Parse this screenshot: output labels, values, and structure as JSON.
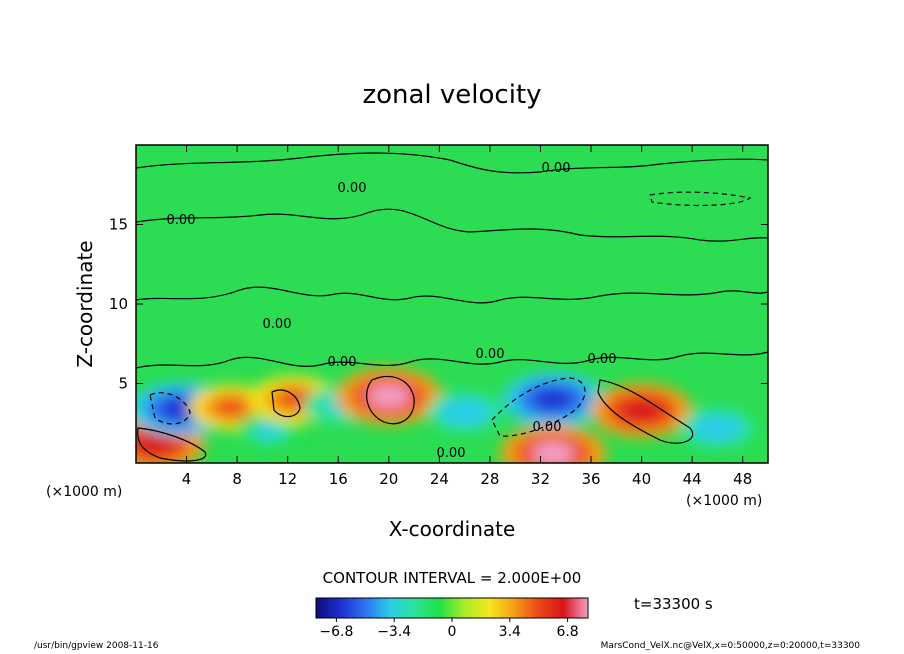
{
  "chart_data": {
    "type": "heatmap",
    "title": "zonal velocity",
    "xlabel": "X-coordinate",
    "ylabel": "Z-coordinate",
    "x_unit": "(×1000 m)",
    "x_ticks": [
      4,
      8,
      12,
      16,
      20,
      24,
      28,
      32,
      36,
      40,
      44,
      48
    ],
    "y_ticks": [
      5,
      10,
      15
    ],
    "xlim": [
      0,
      50
    ],
    "ylim": [
      0,
      20
    ],
    "contour_interval_text": "CONTOUR INTERVAL = 2.000E+00",
    "contour_label": "0.00",
    "time_text": "t=33300 s",
    "colorbar": {
      "range": [
        -8,
        8
      ],
      "ticks": [
        -6.8,
        -3.4,
        0,
        3.4,
        6.8
      ],
      "tick_labels": [
        "−6.8",
        "−3.4",
        "0",
        "3.4",
        "6.8"
      ],
      "colors": [
        "#0c0c78",
        "#1f2fd0",
        "#2e74f0",
        "#2ccde8",
        "#2be39a",
        "#22e048",
        "#a6ec28",
        "#f4e81e",
        "#f59f16",
        "#ea4818",
        "#d8141a",
        "#f2a0c8"
      ]
    },
    "features": [
      {
        "kind": "positive",
        "x": 1.5,
        "z": 1.2,
        "value": 6.8
      },
      {
        "kind": "negative",
        "x": 3.5,
        "z": 3.4,
        "value": -6.8
      },
      {
        "kind": "positive",
        "x": 7.5,
        "z": 3.5,
        "value": 5.0
      },
      {
        "kind": "negative",
        "x": 10.5,
        "z": 2.0,
        "value": -3.0
      },
      {
        "kind": "positive",
        "x": 12.5,
        "z": 4.0,
        "value": 5.5
      },
      {
        "kind": "negative",
        "x": 16.0,
        "z": 3.6,
        "value": -3.4
      },
      {
        "kind": "positive",
        "x": 20.0,
        "z": 4.2,
        "value": 7.5
      },
      {
        "kind": "negative",
        "x": 26.0,
        "z": 3.2,
        "value": -4.0
      },
      {
        "kind": "negative",
        "x": 33.0,
        "z": 4.0,
        "value": -7.0
      },
      {
        "kind": "positive",
        "x": 33.0,
        "z": 0.6,
        "value": 7.5
      },
      {
        "kind": "positive",
        "x": 40.0,
        "z": 3.3,
        "value": 7.0
      },
      {
        "kind": "negative",
        "x": 46.0,
        "z": 2.2,
        "value": -4.0
      }
    ]
  },
  "footer": {
    "left": "/usr/bin/gpview  2008-11-16",
    "right": "MarsCond_VelX.nc@VelX,x=0:50000,z=0:20000,t=33300"
  }
}
